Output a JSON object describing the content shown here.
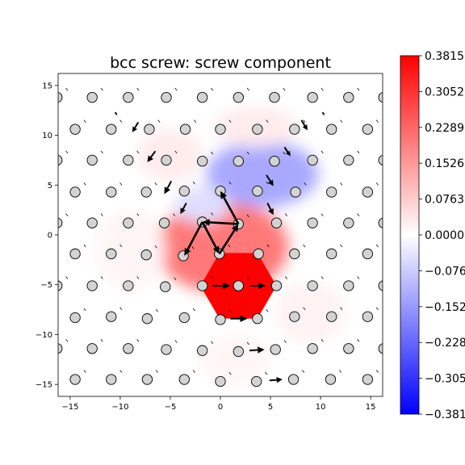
{
  "chart_data": {
    "type": "scatter",
    "title": "bcc screw: screw component",
    "xlabel": "",
    "ylabel": "",
    "xlim": [
      -16.2,
      16.2
    ],
    "ylim": [
      -16.2,
      16.2
    ],
    "xticks": [
      -15,
      -10,
      -5,
      0,
      5,
      10,
      15
    ],
    "yticks": [
      -15,
      -10,
      -5,
      0,
      5,
      10,
      15
    ],
    "grid": false,
    "colorbar": {
      "cmap": "bwr",
      "vmin": -0.3815,
      "vmax": 0.3815,
      "ticks": [
        0.3815,
        0.3052,
        0.2289,
        0.1526,
        0.0763,
        0.0,
        -0.0763,
        -0.1526,
        -0.2289,
        -0.3052,
        -0.3815
      ],
      "tick_labels": [
        "0.3815",
        "0.3052",
        "0.2289",
        "0.1526",
        "0.0763",
        "0.0000",
        "−0.0763",
        "−0.1526",
        "−0.2289",
        "−0.3052",
        "−0.3815"
      ]
    },
    "atom_marker": {
      "fill": "#d3d3d3",
      "edge": "#000000"
    },
    "atoms": [
      [
        -16.3,
        13.8
      ],
      [
        -12.8,
        13.8
      ],
      [
        -9.2,
        13.8
      ],
      [
        -5.4,
        13.8
      ],
      [
        -1.8,
        13.8
      ],
      [
        1.8,
        13.8
      ],
      [
        5.4,
        13.8
      ],
      [
        9.2,
        13.8
      ],
      [
        12.8,
        13.8
      ],
      [
        16.3,
        13.8
      ],
      [
        -14.5,
        10.6
      ],
      [
        -10.9,
        10.6
      ],
      [
        -7.1,
        10.6
      ],
      [
        -3.5,
        10.6
      ],
      [
        0.0,
        10.6
      ],
      [
        3.7,
        10.6
      ],
      [
        7.4,
        10.6
      ],
      [
        11.1,
        10.6
      ],
      [
        14.7,
        10.6
      ],
      [
        -16.3,
        7.5
      ],
      [
        -12.8,
        7.5
      ],
      [
        -9.2,
        7.5
      ],
      [
        -5.4,
        7.5
      ],
      [
        -1.8,
        7.4
      ],
      [
        1.8,
        7.4
      ],
      [
        5.4,
        7.4
      ],
      [
        9.2,
        7.5
      ],
      [
        12.8,
        7.5
      ],
      [
        16.3,
        7.5
      ],
      [
        -14.5,
        4.3
      ],
      [
        -10.9,
        4.3
      ],
      [
        -7.4,
        4.3
      ],
      [
        -3.6,
        4.4
      ],
      [
        0.0,
        4.4
      ],
      [
        3.7,
        4.4
      ],
      [
        7.5,
        4.3
      ],
      [
        11.1,
        4.3
      ],
      [
        14.7,
        4.3
      ],
      [
        -16.3,
        1.2
      ],
      [
        -12.8,
        1.2
      ],
      [
        -9.2,
        1.2
      ],
      [
        -5.6,
        1.2
      ],
      [
        -1.8,
        1.3
      ],
      [
        1.8,
        1.1
      ],
      [
        5.6,
        1.2
      ],
      [
        9.2,
        1.2
      ],
      [
        12.8,
        1.2
      ],
      [
        16.3,
        1.2
      ],
      [
        -14.5,
        -1.9
      ],
      [
        -10.9,
        -1.9
      ],
      [
        -7.4,
        -2.0
      ],
      [
        -3.7,
        -2.1
      ],
      [
        -0.1,
        -1.9
      ],
      [
        3.8,
        -1.9
      ],
      [
        7.4,
        -1.9
      ],
      [
        11.1,
        -1.9
      ],
      [
        14.7,
        -1.9
      ],
      [
        -16.3,
        -5.1
      ],
      [
        -12.8,
        -5.1
      ],
      [
        -9.2,
        -5.1
      ],
      [
        -5.5,
        -5.2
      ],
      [
        -1.8,
        -5.1
      ],
      [
        1.8,
        -5.1
      ],
      [
        5.6,
        -5.1
      ],
      [
        9.2,
        -5.1
      ],
      [
        12.8,
        -5.1
      ],
      [
        16.3,
        -5.1
      ],
      [
        -14.5,
        -8.3
      ],
      [
        -10.9,
        -8.2
      ],
      [
        -7.3,
        -8.4
      ],
      [
        -3.6,
        -8.3
      ],
      [
        0.0,
        -8.5
      ],
      [
        3.7,
        -8.4
      ],
      [
        7.4,
        -8.2
      ],
      [
        11.1,
        -8.2
      ],
      [
        14.7,
        -8.2
      ],
      [
        -16.3,
        -11.4
      ],
      [
        -12.8,
        -11.4
      ],
      [
        -9.2,
        -11.4
      ],
      [
        -5.4,
        -11.5
      ],
      [
        -1.8,
        -11.6
      ],
      [
        1.8,
        -11.7
      ],
      [
        5.5,
        -11.5
      ],
      [
        9.2,
        -11.4
      ],
      [
        12.8,
        -11.4
      ],
      [
        16.3,
        -11.4
      ],
      [
        -14.5,
        -14.5
      ],
      [
        -10.9,
        -14.5
      ],
      [
        -7.3,
        -14.5
      ],
      [
        -3.6,
        -14.5
      ],
      [
        0.0,
        -14.7
      ],
      [
        3.6,
        -14.7
      ],
      [
        7.3,
        -14.5
      ],
      [
        11.0,
        -14.5
      ],
      [
        14.7,
        -14.5
      ]
    ],
    "arrows": [
      [
        1.7,
        1.1,
        -1.8,
        1.3
      ],
      [
        -1.8,
        1.3,
        -3.6,
        -2.1
      ],
      [
        -1.8,
        1.3,
        -0.1,
        -1.9
      ],
      [
        -0.1,
        -1.9,
        1.8,
        1.1
      ],
      [
        1.8,
        1.1,
        0.0,
        4.4
      ],
      [
        -0.8,
        -5.1,
        1.0,
        -5.1
      ],
      [
        3.0,
        -5.1,
        4.5,
        -5.1
      ],
      [
        1.0,
        -8.4,
        2.7,
        -8.4
      ],
      [
        2.9,
        -11.6,
        4.4,
        -11.5
      ],
      [
        4.9,
        -14.6,
        6.2,
        -14.5
      ],
      [
        -4.9,
        5.4,
        -5.6,
        4.1
      ],
      [
        -6.5,
        8.4,
        -7.3,
        7.3
      ],
      [
        -8.2,
        11.3,
        -8.8,
        10.3
      ],
      [
        4.6,
        6.0,
        5.3,
        4.9
      ],
      [
        6.4,
        8.8,
        7.0,
        7.9
      ],
      [
        8.1,
        11.5,
        8.7,
        10.5
      ],
      [
        4.7,
        3.2,
        5.3,
        2.0
      ],
      [
        -3.4,
        3.2,
        -4.0,
        2.1
      ],
      [
        10.2,
        12.3,
        10.4,
        12.0
      ],
      [
        -10.5,
        12.3,
        -10.3,
        12.0
      ]
    ],
    "field": {
      "hexagon": {
        "cx": 1.8,
        "cy": -5.1,
        "r": 3.8,
        "value": 0.3815
      },
      "blobs": [
        {
          "cx": 0.2,
          "cy": -1.2,
          "rx": 6.6,
          "ry": 4.6,
          "value": 0.2
        },
        {
          "cx": 4.2,
          "cy": 6.1,
          "rx": 5.6,
          "ry": 3.3,
          "value": -0.13
        },
        {
          "cx": -1.8,
          "cy": 3.0,
          "rx": 2.8,
          "ry": 1.8,
          "value": -0.05
        },
        {
          "cx": -5.0,
          "cy": 8.0,
          "rx": 3.2,
          "ry": 2.6,
          "value": 0.03
        },
        {
          "cx": 3.5,
          "cy": 10.8,
          "rx": 4.2,
          "ry": 2.0,
          "value": 0.03
        },
        {
          "cx": 9.0,
          "cy": -7.8,
          "rx": 3.5,
          "ry": 3.0,
          "value": 0.02
        },
        {
          "cx": -9.0,
          "cy": -1.5,
          "rx": 3.5,
          "ry": 4.0,
          "value": 0.015
        },
        {
          "cx": 1.5,
          "cy": -12.5,
          "rx": 3.5,
          "ry": 2.5,
          "value": 0.015
        }
      ]
    }
  }
}
